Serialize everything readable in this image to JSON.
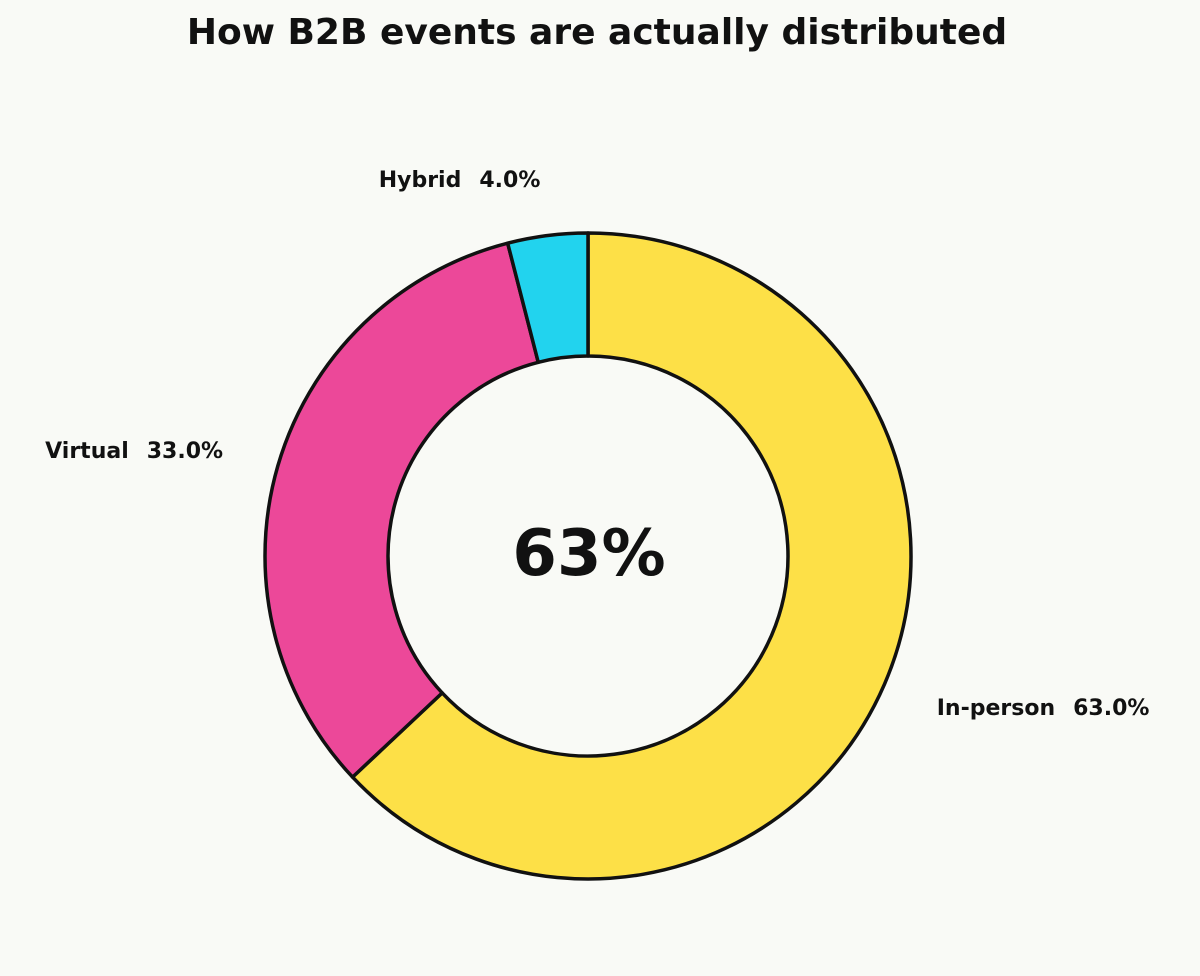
{
  "chart_data": {
    "type": "pie",
    "variant": "donut",
    "title": "How B2B events are actually distributed",
    "center_label": "63%",
    "start": "top",
    "direction": "clockwise",
    "slices": [
      {
        "name": "In-person",
        "value": 63.0,
        "label": "63.0%",
        "color": "#fde047"
      },
      {
        "name": "Virtual",
        "value": 33.0,
        "label": "33.0%",
        "color": "#ec4899"
      },
      {
        "name": "Hybrid",
        "value": 4.0,
        "label": "4.0%",
        "color": "#22d3ee"
      }
    ],
    "edge_color": "#111111",
    "background": "#f9faf6"
  }
}
